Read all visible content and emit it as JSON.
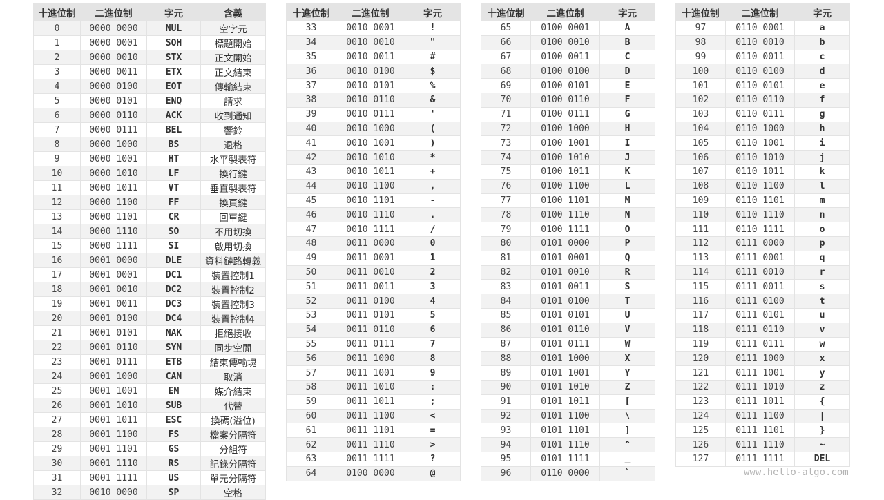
{
  "tables": [
    {
      "headers": [
        "十進位制",
        "二進位制",
        "字元",
        "含義"
      ],
      "rows": [
        [
          "0",
          "0000 0000",
          "NUL",
          "空字元"
        ],
        [
          "1",
          "0000 0001",
          "SOH",
          "標題開始"
        ],
        [
          "2",
          "0000 0010",
          "STX",
          "正文開始"
        ],
        [
          "3",
          "0000 0011",
          "ETX",
          "正文結束"
        ],
        [
          "4",
          "0000 0100",
          "EOT",
          "傳輸結束"
        ],
        [
          "5",
          "0000 0101",
          "ENQ",
          "請求"
        ],
        [
          "6",
          "0000 0110",
          "ACK",
          "收到通知"
        ],
        [
          "7",
          "0000 0111",
          "BEL",
          "響鈴"
        ],
        [
          "8",
          "0000 1000",
          "BS",
          "退格"
        ],
        [
          "9",
          "0000 1001",
          "HT",
          "水平製表符"
        ],
        [
          "10",
          "0000 1010",
          "LF",
          "換行鍵"
        ],
        [
          "11",
          "0000 1011",
          "VT",
          "垂直製表符"
        ],
        [
          "12",
          "0000 1100",
          "FF",
          "換頁鍵"
        ],
        [
          "13",
          "0000 1101",
          "CR",
          "回車鍵"
        ],
        [
          "14",
          "0000 1110",
          "SO",
          "不用切換"
        ],
        [
          "15",
          "0000 1111",
          "SI",
          "啟用切換"
        ],
        [
          "16",
          "0001 0000",
          "DLE",
          "資料鏈路轉義"
        ],
        [
          "17",
          "0001 0001",
          "DC1",
          "裝置控制1"
        ],
        [
          "18",
          "0001 0010",
          "DC2",
          "裝置控制2"
        ],
        [
          "19",
          "0001 0011",
          "DC3",
          "裝置控制3"
        ],
        [
          "20",
          "0001 0100",
          "DC4",
          "裝置控制4"
        ],
        [
          "21",
          "0001 0101",
          "NAK",
          "拒絕接收"
        ],
        [
          "22",
          "0001 0110",
          "SYN",
          "同步空閒"
        ],
        [
          "23",
          "0001 0111",
          "ETB",
          "結束傳輸塊"
        ],
        [
          "24",
          "0001 1000",
          "CAN",
          "取消"
        ],
        [
          "25",
          "0001 1001",
          "EM",
          "媒介結束"
        ],
        [
          "26",
          "0001 1010",
          "SUB",
          "代替"
        ],
        [
          "27",
          "0001 1011",
          "ESC",
          "換碼(溢位)"
        ],
        [
          "28",
          "0001 1100",
          "FS",
          "檔案分隔符"
        ],
        [
          "29",
          "0001 1101",
          "GS",
          "分組符"
        ],
        [
          "30",
          "0001 1110",
          "RS",
          "記錄分隔符"
        ],
        [
          "31",
          "0001 1111",
          "US",
          "單元分隔符"
        ],
        [
          "32",
          "0010 0000",
          "SP",
          "空格"
        ]
      ]
    },
    {
      "headers": [
        "十進位制",
        "二進位制",
        "字元"
      ],
      "rows": [
        [
          "33",
          "0010 0001",
          "!"
        ],
        [
          "34",
          "0010 0010",
          "\""
        ],
        [
          "35",
          "0010 0011",
          "#"
        ],
        [
          "36",
          "0010 0100",
          "$"
        ],
        [
          "37",
          "0010 0101",
          "%"
        ],
        [
          "38",
          "0010 0110",
          "&"
        ],
        [
          "39",
          "0010 0111",
          "'"
        ],
        [
          "40",
          "0010 1000",
          "("
        ],
        [
          "41",
          "0010 1001",
          ")"
        ],
        [
          "42",
          "0010 1010",
          "*"
        ],
        [
          "43",
          "0010 1011",
          "+"
        ],
        [
          "44",
          "0010 1100",
          ","
        ],
        [
          "45",
          "0010 1101",
          "-"
        ],
        [
          "46",
          "0010 1110",
          "."
        ],
        [
          "47",
          "0010 1111",
          "/"
        ],
        [
          "48",
          "0011 0000",
          "0"
        ],
        [
          "49",
          "0011 0001",
          "1"
        ],
        [
          "50",
          "0011 0010",
          "2"
        ],
        [
          "51",
          "0011 0011",
          "3"
        ],
        [
          "52",
          "0011 0100",
          "4"
        ],
        [
          "53",
          "0011 0101",
          "5"
        ],
        [
          "54",
          "0011 0110",
          "6"
        ],
        [
          "55",
          "0011 0111",
          "7"
        ],
        [
          "56",
          "0011 1000",
          "8"
        ],
        [
          "57",
          "0011 1001",
          "9"
        ],
        [
          "58",
          "0011 1010",
          ":"
        ],
        [
          "59",
          "0011 1011",
          ";"
        ],
        [
          "60",
          "0011 1100",
          "<"
        ],
        [
          "61",
          "0011 1101",
          "="
        ],
        [
          "62",
          "0011 1110",
          ">"
        ],
        [
          "63",
          "0011 1111",
          "?"
        ],
        [
          "64",
          "0100 0000",
          "@"
        ]
      ]
    },
    {
      "headers": [
        "十進位制",
        "二進位制",
        "字元"
      ],
      "rows": [
        [
          "65",
          "0100 0001",
          "A"
        ],
        [
          "66",
          "0100 0010",
          "B"
        ],
        [
          "67",
          "0100 0011",
          "C"
        ],
        [
          "68",
          "0100 0100",
          "D"
        ],
        [
          "69",
          "0100 0101",
          "E"
        ],
        [
          "70",
          "0100 0110",
          "F"
        ],
        [
          "71",
          "0100 0111",
          "G"
        ],
        [
          "72",
          "0100 1000",
          "H"
        ],
        [
          "73",
          "0100 1001",
          "I"
        ],
        [
          "74",
          "0100 1010",
          "J"
        ],
        [
          "75",
          "0100 1011",
          "K"
        ],
        [
          "76",
          "0100 1100",
          "L"
        ],
        [
          "77",
          "0100 1101",
          "M"
        ],
        [
          "78",
          "0100 1110",
          "N"
        ],
        [
          "79",
          "0100 1111",
          "O"
        ],
        [
          "80",
          "0101 0000",
          "P"
        ],
        [
          "81",
          "0101 0001",
          "Q"
        ],
        [
          "82",
          "0101 0010",
          "R"
        ],
        [
          "83",
          "0101 0011",
          "S"
        ],
        [
          "84",
          "0101 0100",
          "T"
        ],
        [
          "85",
          "0101 0101",
          "U"
        ],
        [
          "86",
          "0101 0110",
          "V"
        ],
        [
          "87",
          "0101 0111",
          "W"
        ],
        [
          "88",
          "0101 1000",
          "X"
        ],
        [
          "89",
          "0101 1001",
          "Y"
        ],
        [
          "90",
          "0101 1010",
          "Z"
        ],
        [
          "91",
          "0101 1011",
          "["
        ],
        [
          "92",
          "0101 1100",
          "\\"
        ],
        [
          "93",
          "0101 1101",
          "]"
        ],
        [
          "94",
          "0101 1110",
          "^"
        ],
        [
          "95",
          "0101 1111",
          "_"
        ],
        [
          "96",
          "0110 0000",
          "`"
        ]
      ]
    },
    {
      "headers": [
        "十進位制",
        "二進位制",
        "字元"
      ],
      "rows": [
        [
          "97",
          "0110 0001",
          "a"
        ],
        [
          "98",
          "0110 0010",
          "b"
        ],
        [
          "99",
          "0110 0011",
          "c"
        ],
        [
          "100",
          "0110 0100",
          "d"
        ],
        [
          "101",
          "0110 0101",
          "e"
        ],
        [
          "102",
          "0110 0110",
          "f"
        ],
        [
          "103",
          "0110 0111",
          "g"
        ],
        [
          "104",
          "0110 1000",
          "h"
        ],
        [
          "105",
          "0110 1001",
          "i"
        ],
        [
          "106",
          "0110 1010",
          "j"
        ],
        [
          "107",
          "0110 1011",
          "k"
        ],
        [
          "108",
          "0110 1100",
          "l"
        ],
        [
          "109",
          "0110 1101",
          "m"
        ],
        [
          "110",
          "0110 1110",
          "n"
        ],
        [
          "111",
          "0110 1111",
          "o"
        ],
        [
          "112",
          "0111 0000",
          "p"
        ],
        [
          "113",
          "0111 0001",
          "q"
        ],
        [
          "114",
          "0111 0010",
          "r"
        ],
        [
          "115",
          "0111 0011",
          "s"
        ],
        [
          "116",
          "0111 0100",
          "t"
        ],
        [
          "117",
          "0111 0101",
          "u"
        ],
        [
          "118",
          "0111 0110",
          "v"
        ],
        [
          "119",
          "0111 0111",
          "w"
        ],
        [
          "120",
          "0111 1000",
          "x"
        ],
        [
          "121",
          "0111 1001",
          "y"
        ],
        [
          "122",
          "0111 1010",
          "z"
        ],
        [
          "123",
          "0111 1011",
          "{"
        ],
        [
          "124",
          "0111 1100",
          "|"
        ],
        [
          "125",
          "0111 1101",
          "}"
        ],
        [
          "126",
          "0111 1110",
          "~"
        ],
        [
          "127",
          "0111 1111",
          "DEL"
        ]
      ]
    }
  ],
  "watermark": "www.hello-algo.com"
}
